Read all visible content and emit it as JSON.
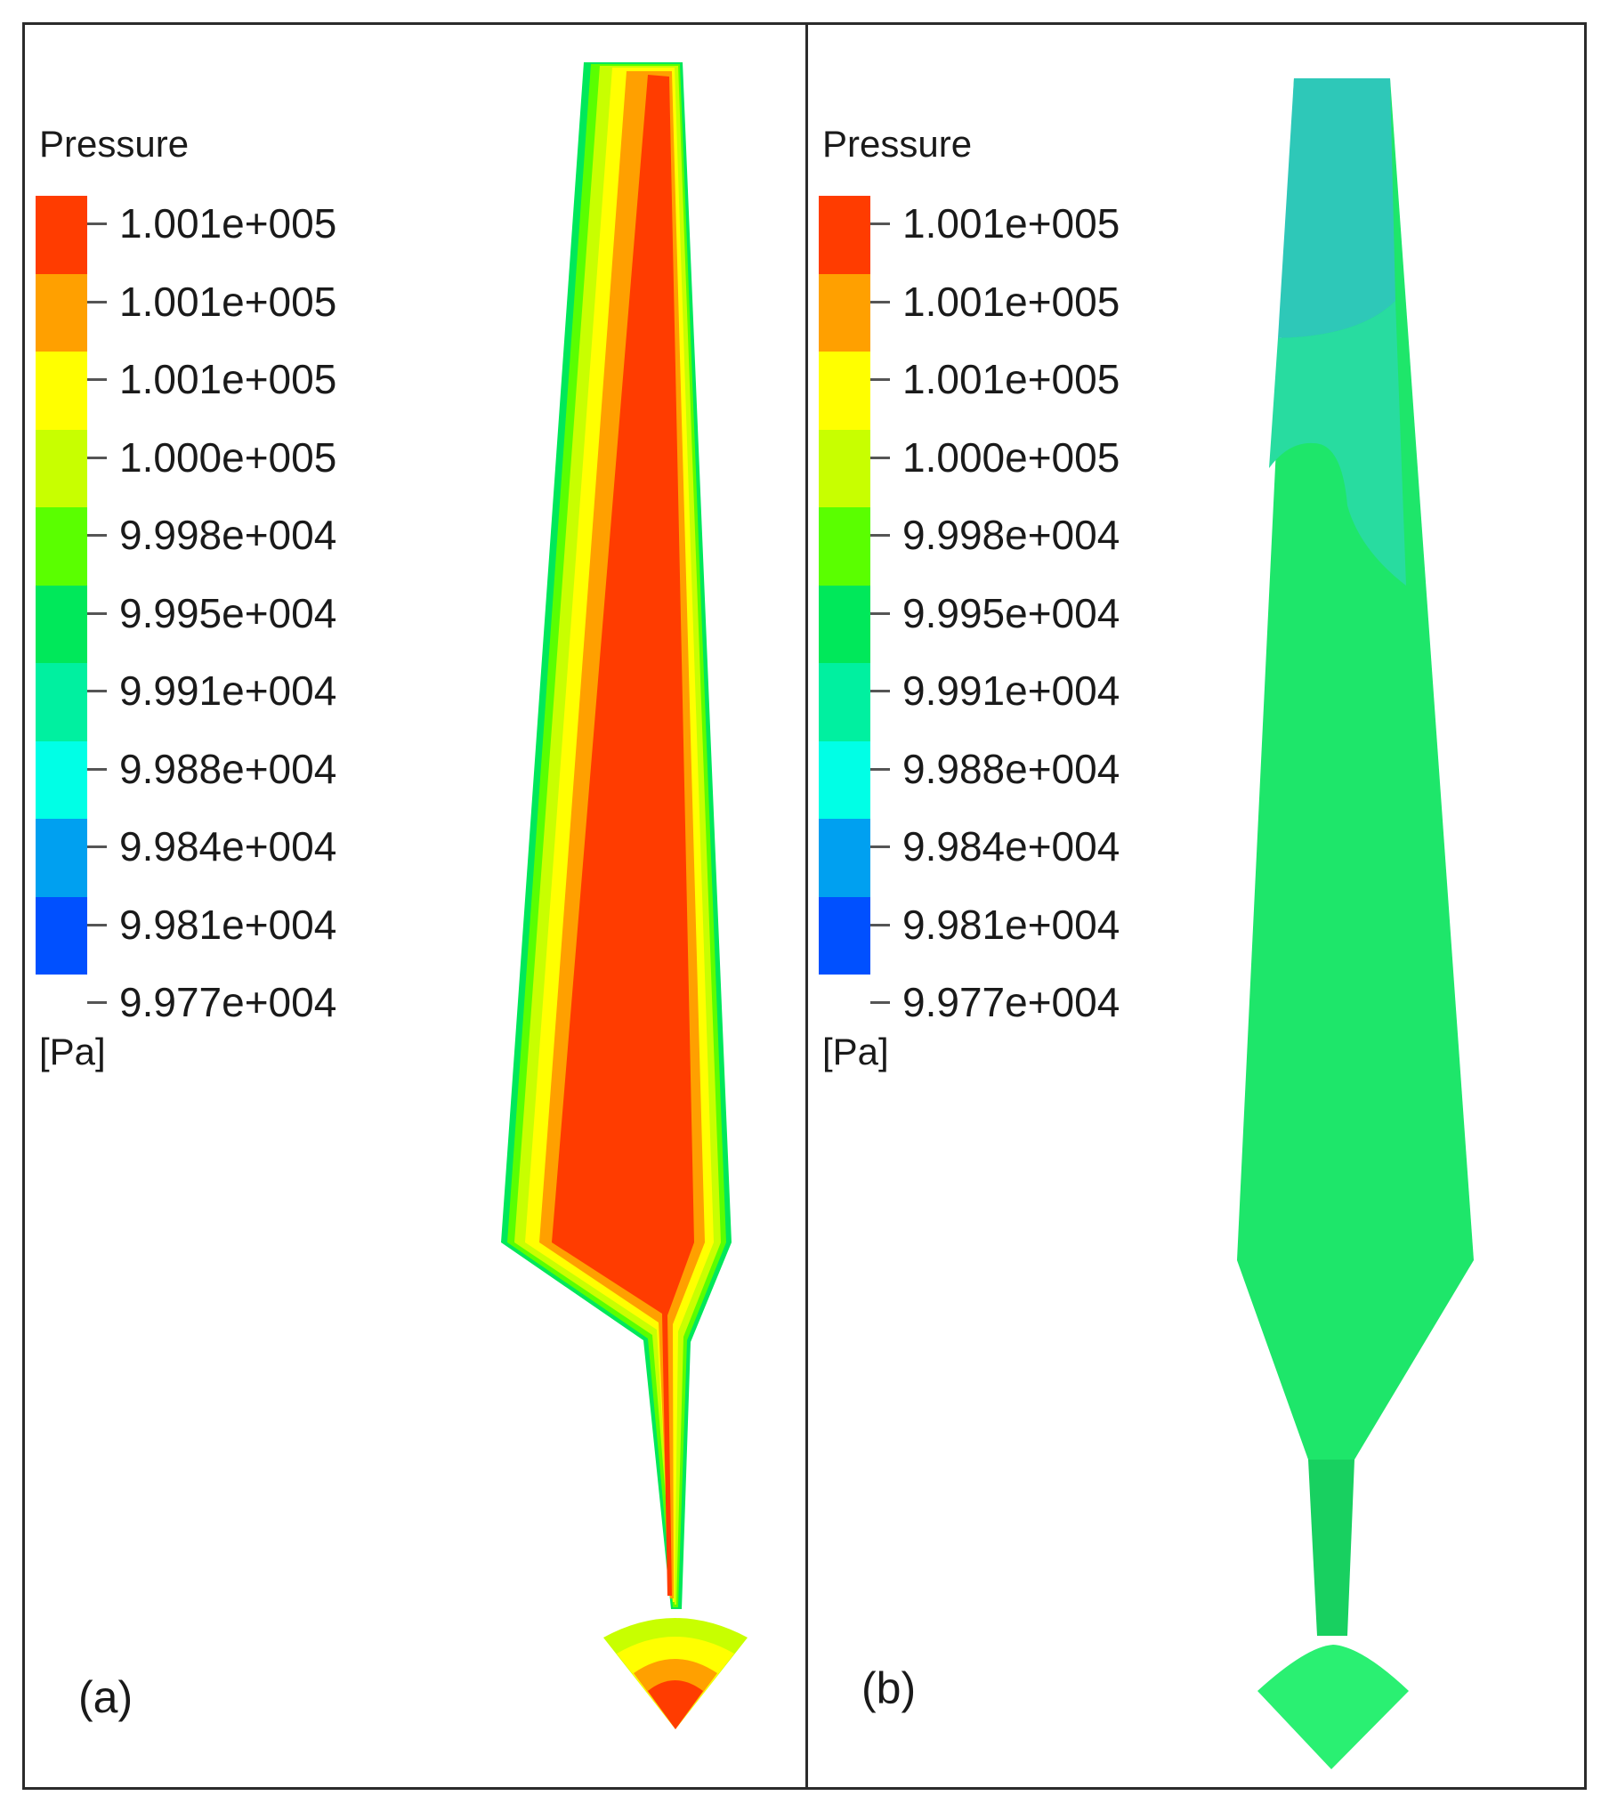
{
  "legend": {
    "title": "Pressure",
    "unit": "[Pa]",
    "tick_labels": [
      "1.001e+005",
      "1.001e+005",
      "1.001e+005",
      "1.000e+005",
      "9.998e+004",
      "9.995e+004",
      "9.991e+004",
      "9.988e+004",
      "9.984e+004",
      "9.981e+004",
      "9.977e+004"
    ],
    "colors": [
      "#ff3c00",
      "#ffa000",
      "#ffff00",
      "#c8ff00",
      "#5aff00",
      "#00e85a",
      "#00f0a0",
      "#00ffe6",
      "#00a0f0",
      "#0050ff"
    ]
  },
  "panels": [
    {
      "id": "a",
      "label": "(a)"
    },
    {
      "id": "b",
      "label": "(b)"
    }
  ]
}
